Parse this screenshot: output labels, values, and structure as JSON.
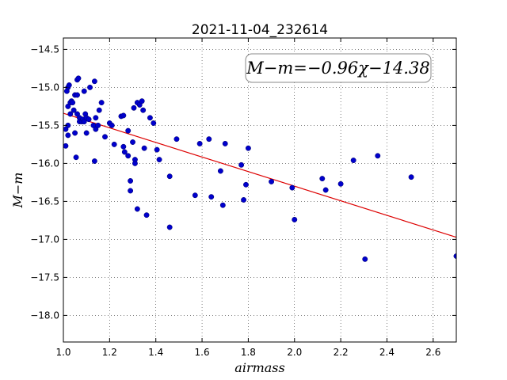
{
  "chart_data": {
    "type": "scatter",
    "title": "2021-11-04_232614",
    "xlabel": "airmass",
    "ylabel": "M−m",
    "xlim": [
      1.0,
      2.7
    ],
    "ylim": [
      -18.35,
      -14.35
    ],
    "y_inverted": true,
    "grid": true,
    "xticks": [
      1.0,
      1.2,
      1.4,
      1.6,
      1.8,
      2.0,
      2.2,
      2.4,
      2.6
    ],
    "xtick_labels": [
      "1.0",
      "1.2",
      "1.4",
      "1.6",
      "1.8",
      "2.0",
      "2.2",
      "2.4",
      "2.6"
    ],
    "yticks": [
      -14.5,
      -15.0,
      -15.5,
      -16.0,
      -16.5,
      -17.0,
      -17.5,
      -18.0
    ],
    "ytick_labels": [
      "−14.5",
      "−15.0",
      "−15.5",
      "−16.0",
      "−16.5",
      "−17.0",
      "−17.5",
      "−18.0"
    ],
    "annotation": "M−m=−0.96χ−14.38",
    "colors": {
      "points": "#0000cc",
      "fit": "#dd0000"
    },
    "fit": {
      "slope": -0.96,
      "intercept": -14.38
    },
    "points": [
      [
        1.01,
        -15.55
      ],
      [
        1.01,
        -15.77
      ],
      [
        1.02,
        -15.63
      ],
      [
        1.02,
        -15.5
      ],
      [
        1.02,
        -15.25
      ],
      [
        1.02,
        -15.0
      ],
      [
        1.015,
        -15.05
      ],
      [
        1.025,
        -14.97
      ],
      [
        1.03,
        -15.2
      ],
      [
        1.03,
        -15.35
      ],
      [
        1.035,
        -15.18
      ],
      [
        1.04,
        -15.2
      ],
      [
        1.045,
        -15.3
      ],
      [
        1.05,
        -15.1
      ],
      [
        1.05,
        -15.6
      ],
      [
        1.055,
        -15.92
      ],
      [
        1.06,
        -15.1
      ],
      [
        1.06,
        -14.9
      ],
      [
        1.065,
        -14.88
      ],
      [
        1.06,
        -15.35
      ],
      [
        1.07,
        -15.4
      ],
      [
        1.07,
        -15.45
      ],
      [
        1.08,
        -15.45
      ],
      [
        1.085,
        -15.42
      ],
      [
        1.09,
        -15.05
      ],
      [
        1.09,
        -15.45
      ],
      [
        1.095,
        -15.35
      ],
      [
        1.1,
        -15.6
      ],
      [
        1.1,
        -15.4
      ],
      [
        1.11,
        -15.42
      ],
      [
        1.115,
        -15.0
      ],
      [
        1.13,
        -15.5
      ],
      [
        1.135,
        -15.97
      ],
      [
        1.135,
        -14.92
      ],
      [
        1.14,
        -15.4
      ],
      [
        1.14,
        -15.55
      ],
      [
        1.15,
        -15.5
      ],
      [
        1.155,
        -15.3
      ],
      [
        1.165,
        -15.2
      ],
      [
        1.18,
        -15.65
      ],
      [
        1.2,
        -15.47
      ],
      [
        1.21,
        -15.5
      ],
      [
        1.22,
        -15.75
      ],
      [
        1.25,
        -15.38
      ],
      [
        1.26,
        -15.37
      ],
      [
        1.26,
        -15.78
      ],
      [
        1.265,
        -15.85
      ],
      [
        1.28,
        -15.57
      ],
      [
        1.28,
        -15.9
      ],
      [
        1.29,
        -16.23
      ],
      [
        1.29,
        -16.36
      ],
      [
        1.3,
        -15.72
      ],
      [
        1.305,
        -15.27
      ],
      [
        1.31,
        -15.95
      ],
      [
        1.31,
        -16.0
      ],
      [
        1.32,
        -15.2
      ],
      [
        1.32,
        -16.6
      ],
      [
        1.33,
        -15.23
      ],
      [
        1.34,
        -15.18
      ],
      [
        1.345,
        -15.3
      ],
      [
        1.35,
        -15.8
      ],
      [
        1.36,
        -16.68
      ],
      [
        1.375,
        -15.4
      ],
      [
        1.39,
        -15.47
      ],
      [
        1.405,
        -15.82
      ],
      [
        1.415,
        -15.95
      ],
      [
        1.46,
        -16.17
      ],
      [
        1.46,
        -16.84
      ],
      [
        1.49,
        -15.68
      ],
      [
        1.57,
        -16.42
      ],
      [
        1.59,
        -15.74
      ],
      [
        1.63,
        -15.68
      ],
      [
        1.64,
        -16.44
      ],
      [
        1.68,
        -16.1
      ],
      [
        1.69,
        -16.55
      ],
      [
        1.7,
        -15.74
      ],
      [
        1.77,
        -16.02
      ],
      [
        1.78,
        -16.48
      ],
      [
        1.79,
        -16.28
      ],
      [
        1.8,
        -15.8
      ],
      [
        1.9,
        -16.24
      ],
      [
        1.99,
        -16.32
      ],
      [
        2.0,
        -16.74
      ],
      [
        2.12,
        -16.2
      ],
      [
        2.135,
        -16.35
      ],
      [
        2.2,
        -16.27
      ],
      [
        2.255,
        -15.96
      ],
      [
        2.305,
        -17.26
      ],
      [
        2.36,
        -15.9
      ],
      [
        2.505,
        -16.18
      ],
      [
        2.7,
        -17.22
      ]
    ]
  }
}
